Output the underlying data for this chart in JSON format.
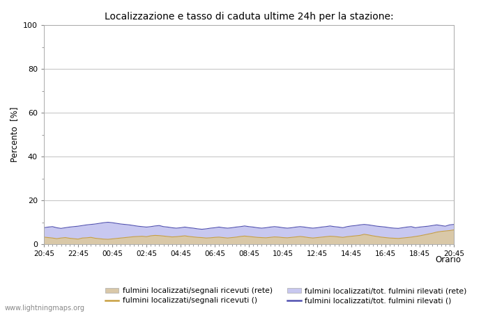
{
  "title": "Localizzazione e tasso di caduta ultime 24h per la stazione:",
  "ylabel": "Percento  [%]",
  "xlabel": "Orario",
  "watermark": "www.lightningmaps.org",
  "xlim": [
    0,
    48
  ],
  "ylim": [
    0,
    100
  ],
  "yticks_major": [
    0,
    20,
    40,
    60,
    80,
    100
  ],
  "yticks_minor": [
    10,
    30,
    50,
    70,
    90
  ],
  "xtick_labels": [
    "20:45",
    "22:45",
    "00:45",
    "02:45",
    "04:45",
    "06:45",
    "08:45",
    "10:45",
    "12:45",
    "14:45",
    "16:45",
    "18:45",
    "20:45"
  ],
  "xtick_positions": [
    0,
    4,
    8,
    12,
    16,
    20,
    24,
    28,
    32,
    36,
    40,
    44,
    48
  ],
  "fill_color_rete": "#d9c8a8",
  "fill_color_tot": "#c8c8f0",
  "line_color_rete": "#c8a040",
  "line_color_tot": "#5050b0",
  "bg_color": "#ffffff",
  "grid_color": "#c8c8c8",
  "n_points": 97,
  "data_fill_rete": [
    3.2,
    3.0,
    2.8,
    2.5,
    2.8,
    3.0,
    2.7,
    2.5,
    2.3,
    2.8,
    2.9,
    3.1,
    2.7,
    2.5,
    2.3,
    2.2,
    2.4,
    2.6,
    2.8,
    3.0,
    3.2,
    3.4,
    3.5,
    3.6,
    3.4,
    3.8,
    4.0,
    3.9,
    3.7,
    3.5,
    3.3,
    3.4,
    3.6,
    3.8,
    3.5,
    3.3,
    3.1,
    3.0,
    2.8,
    2.9,
    3.1,
    3.2,
    3.0,
    2.8,
    3.0,
    3.2,
    3.5,
    3.7,
    3.5,
    3.3,
    3.1,
    3.0,
    2.9,
    3.1,
    3.3,
    3.2,
    3.0,
    2.9,
    3.1,
    3.3,
    3.5,
    3.3,
    3.0,
    2.8,
    3.0,
    3.2,
    3.4,
    3.6,
    3.5,
    3.3,
    3.1,
    3.4,
    3.6,
    3.8,
    4.0,
    4.5,
    4.2,
    3.8,
    3.5,
    3.2,
    3.0,
    2.8,
    2.7,
    2.6,
    2.8,
    3.0,
    3.2,
    3.5,
    3.8,
    4.2,
    4.6,
    5.0,
    5.5,
    5.8,
    6.0,
    6.2,
    6.5
  ],
  "data_fill_tot": [
    7.5,
    7.8,
    8.0,
    7.5,
    7.2,
    7.5,
    7.8,
    8.0,
    8.2,
    8.5,
    8.8,
    9.0,
    9.2,
    9.5,
    9.8,
    10.0,
    9.8,
    9.5,
    9.2,
    9.0,
    8.8,
    8.5,
    8.2,
    8.0,
    7.8,
    8.0,
    8.3,
    8.5,
    8.0,
    7.8,
    7.5,
    7.3,
    7.5,
    7.8,
    7.5,
    7.3,
    7.0,
    6.8,
    7.0,
    7.3,
    7.5,
    7.8,
    7.5,
    7.3,
    7.5,
    7.8,
    8.0,
    8.3,
    8.0,
    7.8,
    7.5,
    7.3,
    7.5,
    7.8,
    8.0,
    7.8,
    7.5,
    7.3,
    7.5,
    7.8,
    8.0,
    7.8,
    7.5,
    7.3,
    7.5,
    7.8,
    8.0,
    8.3,
    8.0,
    7.8,
    7.5,
    8.0,
    8.3,
    8.5,
    8.8,
    9.0,
    8.8,
    8.5,
    8.2,
    8.0,
    7.8,
    7.5,
    7.3,
    7.2,
    7.5,
    7.8,
    8.0,
    7.5,
    7.8,
    8.0,
    8.2,
    8.5,
    8.8,
    8.5,
    8.2,
    8.8,
    9.0
  ],
  "legend_row1": [
    {
      "label": "fulmini localizzati/segnali ricevuti (rete)",
      "type": "fill",
      "color": "#d9c8a8"
    },
    {
      "label": "fulmini localizzati/segnali ricevuti ()",
      "type": "line",
      "color": "#c8a040"
    }
  ],
  "legend_row2": [
    {
      "label": "fulmini localizzati/tot. fulmini rilevati (rete)",
      "type": "fill",
      "color": "#c8c8f0"
    },
    {
      "label": "fulmini localizzati/tot. fulmini rilevati ()",
      "type": "line",
      "color": "#5050b0"
    }
  ]
}
